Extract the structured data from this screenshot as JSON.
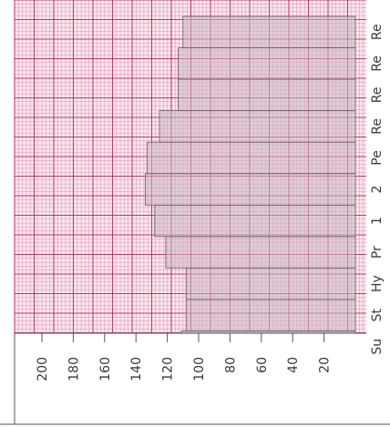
{
  "chart_data": {
    "type": "bar",
    "orientation": "horizontal-rotated",
    "categories": [
      "Su",
      "St",
      "Hy",
      "Pr",
      "1",
      "2",
      "Pe",
      "Re",
      "Re",
      "Re",
      "Re"
    ],
    "values": [
      111,
      108,
      108,
      121,
      128,
      134,
      133,
      125,
      113,
      113,
      110
    ],
    "ylim": [
      0,
      210
    ],
    "ticks": [
      200,
      180,
      160,
      140,
      120,
      100,
      80,
      60,
      40,
      20
    ],
    "grid": true,
    "colors": {
      "grid_major": "#b4205a",
      "grid_minor": "#d96a98",
      "paper": "#fae6ee",
      "bar_fill": "#c8b8c2",
      "axis": "#555555",
      "text": "#3a3a3a"
    }
  }
}
